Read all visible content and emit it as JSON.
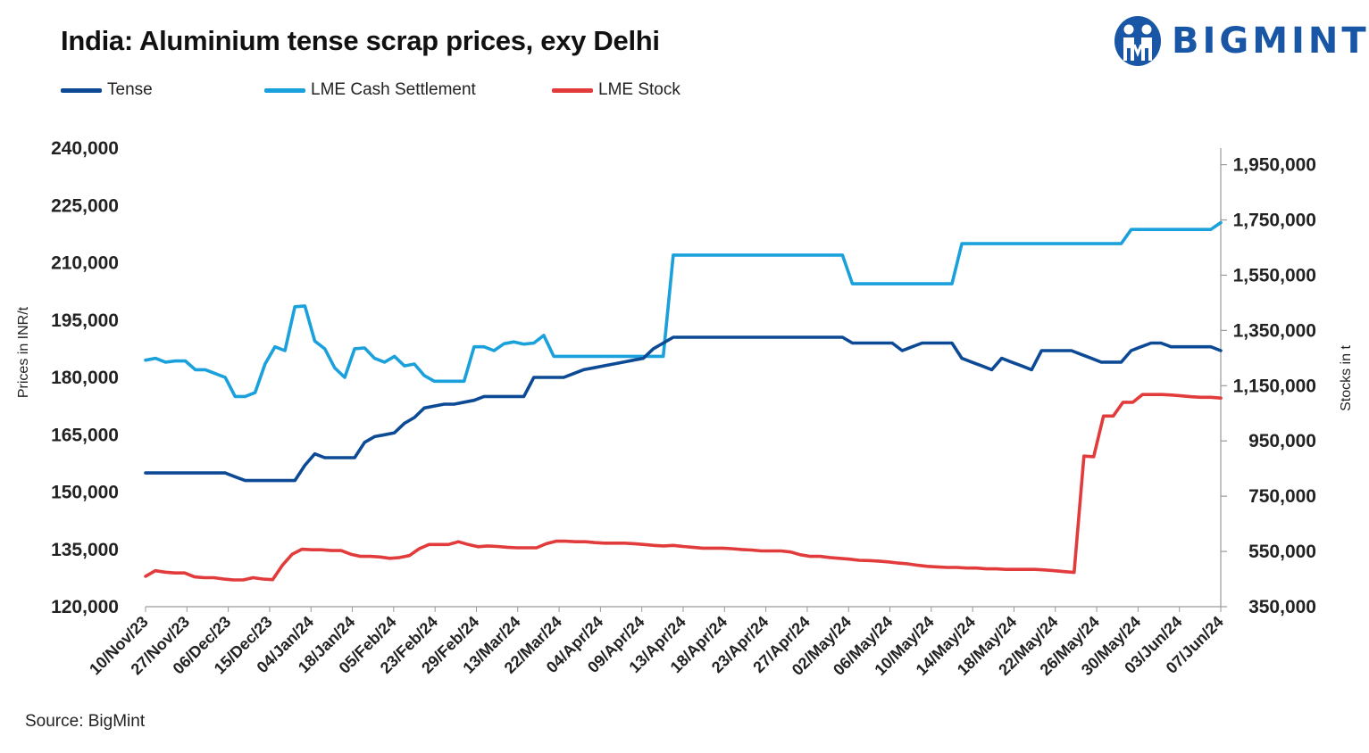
{
  "title": "India: Aluminium tense scrap prices, exy Delhi",
  "brand": {
    "name": "BIGMINT",
    "color": "#1957a6"
  },
  "source": "Source: BigMint",
  "legend": [
    {
      "label": "Tense",
      "color": "#0c4a96"
    },
    {
      "label": "LME Cash Settlement",
      "color": "#1aa1dc"
    },
    {
      "label": "LME Stock",
      "color": "#e23b3b"
    }
  ],
  "chart_data": {
    "type": "line",
    "title": "India: Aluminium tense scrap prices, exy Delhi",
    "ylabel_left": "Prices in INR/t",
    "ylabel_right": "Stocks in t",
    "ylim_left": [
      120000,
      240000
    ],
    "yticks_left": [
      "120,000",
      "135,000",
      "150,000",
      "165,000",
      "180,000",
      "195,000",
      "210,000",
      "225,000",
      "240,000"
    ],
    "ylim_right": [
      350000,
      2010000
    ],
    "yticks_right": [
      "350,000",
      "550,000",
      "750,000",
      "950,000",
      "1,150,000",
      "1,350,000",
      "1,550,000",
      "1,750,000",
      "1,950,000"
    ],
    "x_tick_labels": [
      "10/Nov/23",
      "27/Nov/23",
      "06/Dec/23",
      "15/Dec/23",
      "04/Jan/24",
      "18/Jan/24",
      "05/Feb/24",
      "23/Feb/24",
      "29/Feb/24",
      "13/Mar/24",
      "22/Mar/24",
      "04/Apr/24",
      "09/Apr/24",
      "13/Apr/24",
      "18/Apr/24",
      "23/Apr/24",
      "27/Apr/24",
      "02/May/24",
      "06/May/24",
      "10/May/24",
      "14/May/24",
      "18/May/24",
      "22/May/24",
      "26/May/24",
      "30/May/24",
      "03/Jun/24",
      "07/Jun/24"
    ],
    "series": [
      {
        "name": "Tense",
        "axis": "left",
        "color": "#0c4a96",
        "values": [
          155000,
          155000,
          155000,
          155000,
          155000,
          155000,
          155000,
          155000,
          155000,
          154000,
          153000,
          153000,
          153000,
          153000,
          153000,
          153000,
          157000,
          160000,
          159000,
          159000,
          159000,
          159000,
          163000,
          164500,
          165000,
          165500,
          168000,
          169500,
          172000,
          172500,
          173000,
          173000,
          173500,
          174000,
          175000,
          175000,
          175000,
          175000,
          175000,
          180000,
          180000,
          180000,
          180000,
          181000,
          182000,
          182500,
          183000,
          183500,
          184000,
          184500,
          185000,
          187500,
          189000,
          190500,
          190500,
          190500,
          190500,
          190500,
          190500,
          190500,
          190500,
          190500,
          190500,
          190500,
          190500,
          190500,
          190500,
          190500,
          190500,
          190500,
          190500,
          189000,
          189000,
          189000,
          189000,
          189000,
          187000,
          188000,
          189000,
          189000,
          189000,
          189000,
          185000,
          184000,
          183000,
          182000,
          185000,
          184000,
          183000,
          182000,
          187000,
          187000,
          187000,
          187000,
          186000,
          185000,
          184000,
          184000,
          184000,
          187000,
          188000,
          189000,
          189000,
          188000,
          188000,
          188000,
          188000,
          188000,
          187000
        ]
      },
      {
        "name": "LME Cash Settlement",
        "axis": "left",
        "color": "#1aa1dc",
        "values": [
          184500,
          185000,
          184000,
          184300,
          184300,
          182000,
          182000,
          181000,
          180000,
          175000,
          175000,
          176000,
          183500,
          188000,
          187000,
          198500,
          198700,
          189500,
          187500,
          182500,
          180000,
          187500,
          187700,
          185000,
          184000,
          185500,
          183000,
          183500,
          180500,
          179000,
          179000,
          179000,
          179000,
          188000,
          188000,
          187000,
          188800,
          189300,
          188700,
          189000,
          191000,
          185500,
          185500,
          185500,
          185500,
          185500,
          185500,
          185500,
          185500,
          185500,
          185500,
          185500,
          185500,
          212000,
          212000,
          212000,
          212000,
          212000,
          212000,
          212000,
          212000,
          212000,
          212000,
          212000,
          212000,
          212000,
          212000,
          212000,
          212000,
          212000,
          212000,
          204500,
          204500,
          204500,
          204500,
          204500,
          204500,
          204500,
          204500,
          204500,
          204500,
          204500,
          215000,
          215000,
          215000,
          215000,
          215000,
          215000,
          215000,
          215000,
          215000,
          215000,
          215000,
          215000,
          215000,
          215000,
          215000,
          215000,
          215000,
          218700,
          218700,
          218700,
          218700,
          218700,
          218700,
          218700,
          218700,
          218700,
          220500
        ]
      },
      {
        "name": "LME Stock",
        "axis": "right",
        "color": "#e23b3b",
        "values": [
          460000,
          480000,
          475000,
          472000,
          472000,
          458000,
          455000,
          455000,
          450000,
          447000,
          447000,
          455000,
          450000,
          448000,
          500000,
          540000,
          558000,
          556000,
          556000,
          553000,
          553000,
          540000,
          532000,
          532000,
          530000,
          525000,
          528000,
          535000,
          560000,
          575000,
          575000,
          575000,
          585000,
          575000,
          567000,
          570000,
          568000,
          565000,
          563000,
          563000,
          563000,
          578000,
          587000,
          587000,
          585000,
          585000,
          582000,
          580000,
          580000,
          580000,
          578000,
          575000,
          572000,
          570000,
          572000,
          568000,
          565000,
          562000,
          562000,
          562000,
          560000,
          557000,
          555000,
          552000,
          552000,
          552000,
          548000,
          538000,
          532000,
          532000,
          528000,
          525000,
          522000,
          518000,
          517000,
          515000,
          512000,
          508000,
          505000,
          500000,
          496000,
          494000,
          492000,
          492000,
          490000,
          490000,
          487000,
          487000,
          485000,
          485000,
          485000,
          485000,
          483000,
          480000,
          477000,
          474000,
          895000,
          893000,
          1040000,
          1040000,
          1090000,
          1090000,
          1118000,
          1118000,
          1118000,
          1116000,
          1113000,
          1110000,
          1108000,
          1108000,
          1105000
        ]
      }
    ]
  }
}
